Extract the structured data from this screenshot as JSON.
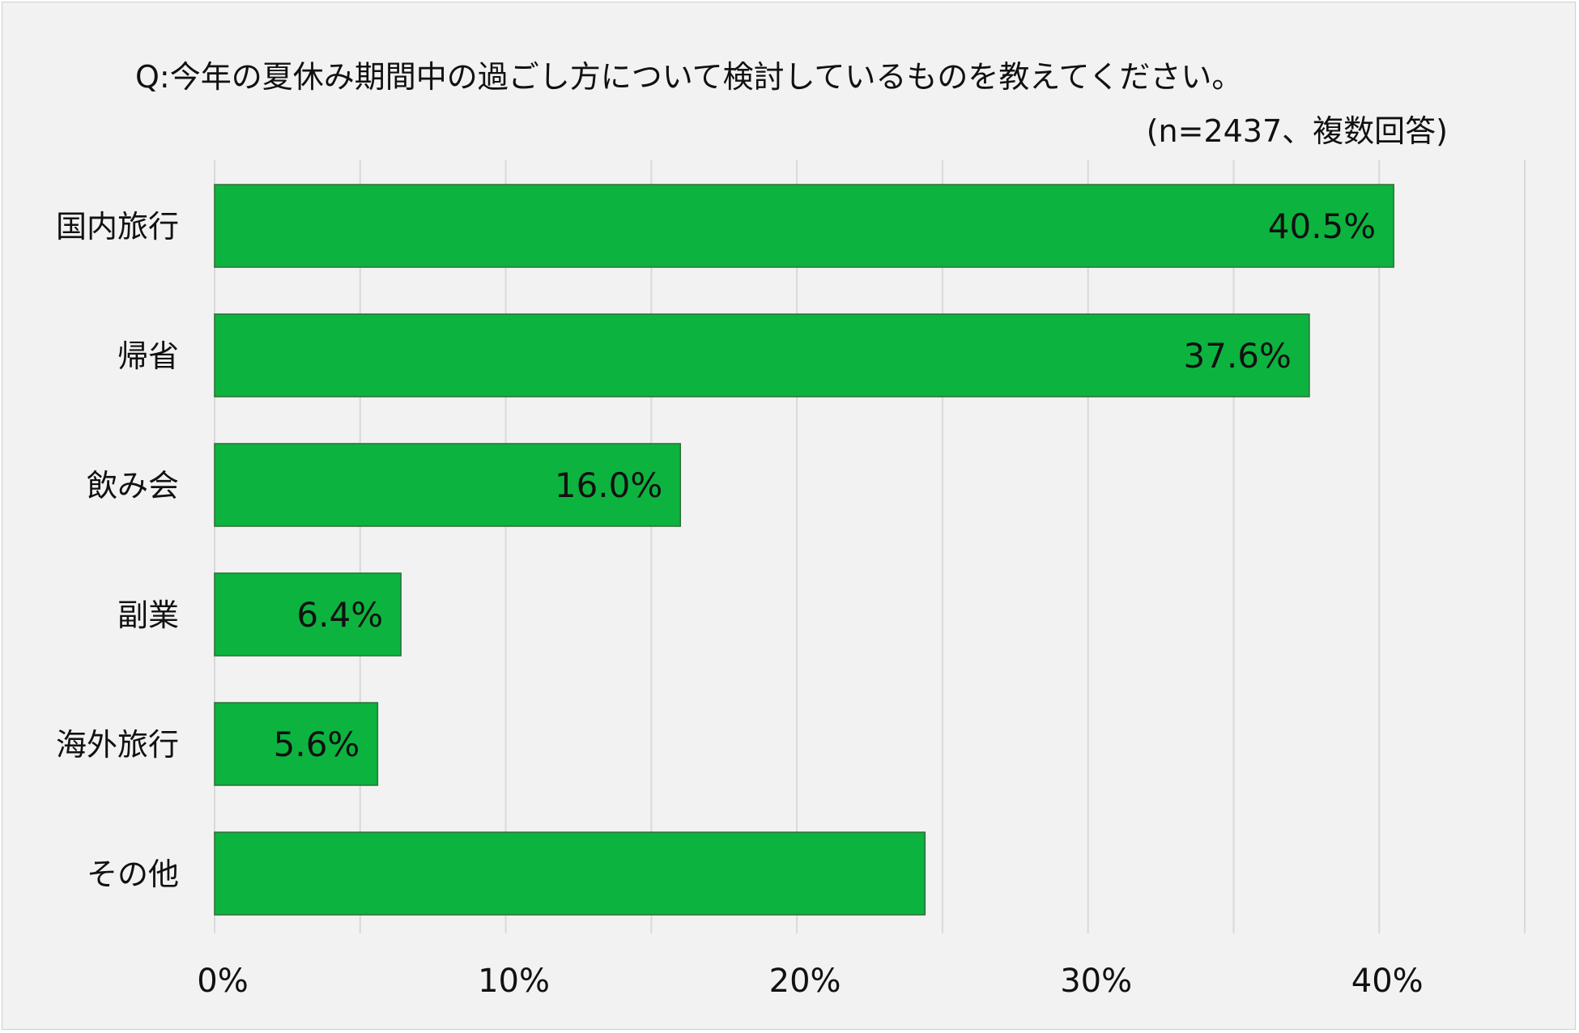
{
  "chart_data": {
    "type": "bar",
    "orientation": "horizontal",
    "title": "Q:今年の夏休み期間中の過ごし方について検討しているものを教えてください。",
    "subtitle": "(n=2437、複数回答)",
    "categories": [
      "国内旅行",
      "帰省",
      "飲み会",
      "副業",
      "海外旅行",
      "その他"
    ],
    "values": [
      40.5,
      37.6,
      16.0,
      6.4,
      5.6,
      24.4
    ],
    "data_labels": [
      "40.5%",
      "37.6%",
      "16.0%",
      "6.4%",
      "5.6%",
      ""
    ],
    "xlim": [
      0,
      45
    ],
    "x_ticks": [
      0,
      10,
      20,
      30,
      40
    ],
    "x_tick_labels": [
      "0%",
      "10%",
      "20%",
      "30%",
      "40%"
    ],
    "grid_step": 5,
    "grid": true,
    "legend": "none",
    "bar_color": "#0db33f",
    "bar_border_color": "#2c6e36",
    "grid_color": "#d9d9d9",
    "background_color": "#f2f2f2"
  }
}
